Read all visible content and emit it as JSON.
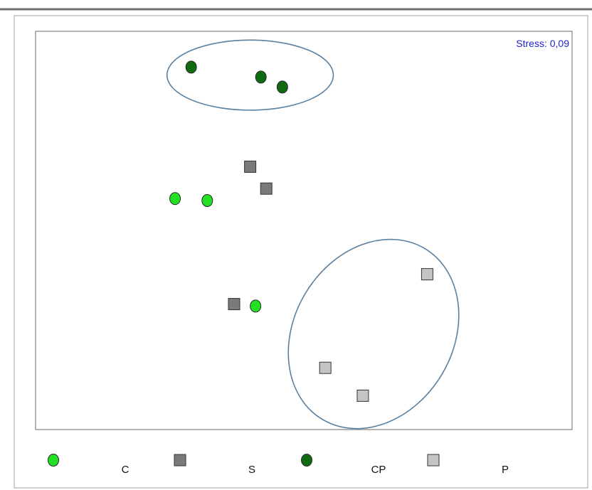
{
  "chart_data": {
    "type": "scatter",
    "title": "",
    "xlabel": "",
    "ylabel": "",
    "xlim": [
      0,
      100
    ],
    "ylim": [
      0,
      100
    ],
    "grid": false,
    "annotation": "Stress: 0,09",
    "annotation_color": "#1f1fd0",
    "legend_placement": "bottom",
    "series": [
      {
        "name": "C",
        "marker": "circle",
        "color": "#22e022",
        "points": [
          [
            26,
            58
          ],
          [
            32,
            57.5
          ],
          [
            41,
            31
          ]
        ]
      },
      {
        "name": "S",
        "marker": "square",
        "color": "#7a7a7a",
        "points": [
          [
            40,
            66
          ],
          [
            43,
            60.5
          ],
          [
            37,
            31.5
          ]
        ]
      },
      {
        "name": "CP",
        "marker": "circle",
        "color": "#0e6b12",
        "points": [
          [
            29,
            91
          ],
          [
            42,
            88.5
          ],
          [
            46,
            86
          ]
        ]
      },
      {
        "name": "P",
        "marker": "square",
        "color": "#c4c4c4",
        "points": [
          [
            73,
            39
          ],
          [
            54,
            15.5
          ],
          [
            61,
            8.5
          ]
        ]
      }
    ],
    "groups": [
      {
        "series": "CP",
        "shape": "ellipse",
        "center": [
          40,
          89
        ],
        "rx": 15.5,
        "ry": 8.8,
        "rotation": 0,
        "color": "#5b7f9e"
      },
      {
        "series": "P",
        "shape": "ellipse",
        "center": [
          63,
          24
        ],
        "rx": 14.8,
        "ry": 25,
        "rotation": 31,
        "color": "#5b7f9e"
      }
    ]
  }
}
